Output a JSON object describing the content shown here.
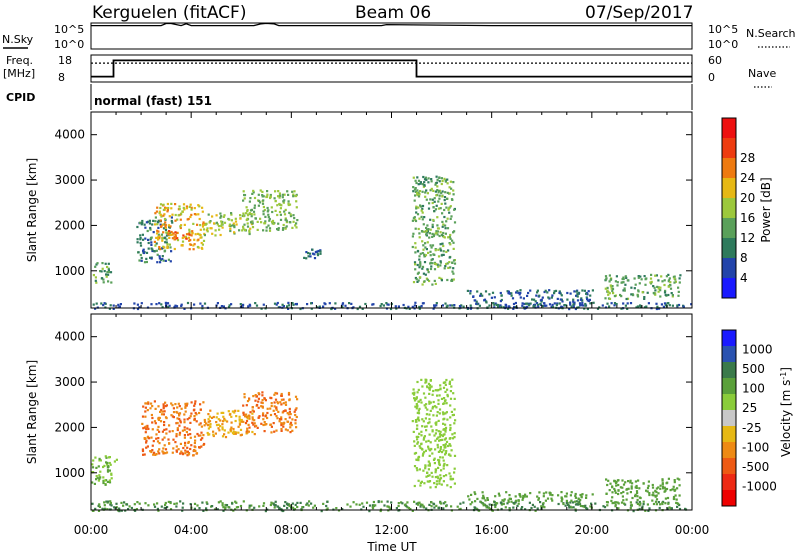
{
  "header": {
    "station": "Kerguelen (fitACF)",
    "beam": "Beam 06",
    "date": "07/Sep/2017"
  },
  "nsky": {
    "left_label": "N.Sky",
    "left_ticks": [
      "10^5",
      "10^0"
    ],
    "right_ticks": [
      "10^5",
      "10^0"
    ],
    "right_label": "N.Search"
  },
  "freq": {
    "left_label": "Freq.",
    "left_units": "[MHz]",
    "left_ticks": [
      "18",
      "8"
    ],
    "right_ticks": [
      "60",
      "0"
    ],
    "right_label": "Nave"
  },
  "cpid": {
    "label": "CPID",
    "value": "normal (fast) 151"
  },
  "axes": {
    "ylabel": "Slant Range [km]",
    "xlabel": "Time UT",
    "xticks": [
      "00:00",
      "04:00",
      "08:00",
      "12:00",
      "16:00",
      "20:00",
      "00:00"
    ],
    "yticks": [
      "1000",
      "2000",
      "3000",
      "4000"
    ]
  },
  "colors": {
    "power": [
      "#1a1aff",
      "#2244aa",
      "#2e7a5c",
      "#5aa05a",
      "#9cc83c",
      "#e6b814",
      "#ee7a10",
      "#ee3c10",
      "#ee1010"
    ],
    "velocity": [
      "#1a1aff",
      "#2a52b0",
      "#3a7a4a",
      "#5aa03a",
      "#8acc3a",
      "#c8c8c8",
      "#e6b814",
      "#ee8a14",
      "#ee5a14",
      "#ee2a14",
      "#ee0000"
    ]
  },
  "chart_data": [
    {
      "type": "line",
      "title": "N.Sky / N.Search",
      "xlim": [
        0,
        24
      ],
      "series": [
        {
          "name": "N.Sky",
          "x": [
            0,
            0.2,
            2.8,
            3.0,
            3.2,
            3.6,
            3.8,
            4.0,
            6.5,
            6.8,
            7.0,
            7.3,
            7.5,
            8.0,
            11.6,
            11.8,
            16.0,
            20.0,
            24.0
          ],
          "y": [
            0.9,
            0.9,
            0.9,
            0.98,
            0.98,
            0.9,
            0.97,
            0.9,
            0.9,
            0.97,
            0.99,
            0.97,
            0.9,
            0.9,
            0.9,
            0.94,
            0.9,
            0.9,
            0.9
          ]
        }
      ]
    },
    {
      "type": "line",
      "title": "Freq. / Nave",
      "xlim": [
        0,
        24
      ],
      "series": [
        {
          "name": "Freq.",
          "x": [
            0,
            0.9,
            0.9,
            13.0,
            13.0,
            24.0
          ],
          "y": [
            10,
            10,
            16,
            16,
            10,
            10
          ]
        },
        {
          "name": "Nave",
          "x": [
            0,
            24
          ],
          "y": [
            42,
            42
          ]
        }
      ]
    },
    {
      "type": "heatmap",
      "title": "Power [dB]",
      "xlim": [
        0,
        24
      ],
      "ylim": [
        180,
        4500
      ],
      "colorbar": {
        "label": "Power [dB]",
        "ticks": [
          4,
          8,
          12,
          16,
          20,
          24,
          28
        ]
      },
      "regions": [
        {
          "t": [
            0,
            0.8
          ],
          "r": [
            750,
            1200
          ],
          "value": 14
        },
        {
          "t": [
            0,
            24
          ],
          "r": [
            180,
            320
          ],
          "value": 8
        },
        {
          "t": [
            1.8,
            3.2
          ],
          "r": [
            1200,
            2200
          ],
          "value": 10
        },
        {
          "t": [
            2.5,
            4.5
          ],
          "r": [
            1500,
            2500
          ],
          "value": 22
        },
        {
          "t": [
            3.0,
            4.0
          ],
          "r": [
            1700,
            1900
          ],
          "value": 28
        },
        {
          "t": [
            4.5,
            6.5
          ],
          "r": [
            1800,
            2300
          ],
          "value": 18
        },
        {
          "t": [
            6.0,
            8.2
          ],
          "r": [
            1900,
            2800
          ],
          "value": 16
        },
        {
          "t": [
            8.4,
            9.2
          ],
          "r": [
            1300,
            1500
          ],
          "value": 8
        },
        {
          "t": [
            12.8,
            14.5
          ],
          "r": [
            700,
            3100
          ],
          "value": 14
        },
        {
          "t": [
            15.0,
            20.0
          ],
          "r": [
            200,
            600
          ],
          "value": 8
        },
        {
          "t": [
            20.5,
            23.5
          ],
          "r": [
            400,
            950
          ],
          "value": 14
        }
      ]
    },
    {
      "type": "heatmap",
      "title": "Velocity [m s^-1]",
      "xlim": [
        0,
        24
      ],
      "ylim": [
        180,
        4500
      ],
      "colorbar": {
        "label": "Velocity [m s^-1]",
        "ticks": [
          1000,
          500,
          100,
          25,
          -25,
          -100,
          -500,
          -1000
        ]
      },
      "regions": [
        {
          "t": [
            0,
            1.0
          ],
          "r": [
            750,
            1400
          ],
          "value": 25
        },
        {
          "t": [
            0,
            24
          ],
          "r": [
            180,
            400
          ],
          "value": 100
        },
        {
          "t": [
            2.0,
            4.5
          ],
          "r": [
            1400,
            2600
          ],
          "value": -500
        },
        {
          "t": [
            4.5,
            6.5
          ],
          "r": [
            1800,
            2400
          ],
          "value": -300
        },
        {
          "t": [
            6.0,
            8.2
          ],
          "r": [
            1900,
            2800
          ],
          "value": -500
        },
        {
          "t": [
            12.8,
            14.5
          ],
          "r": [
            700,
            3100
          ],
          "value": 0
        },
        {
          "t": [
            15.0,
            20.0
          ],
          "r": [
            400,
            600
          ],
          "value": 50
        },
        {
          "t": [
            20.5,
            23.5
          ],
          "r": [
            300,
            900
          ],
          "value": 80
        }
      ]
    }
  ]
}
